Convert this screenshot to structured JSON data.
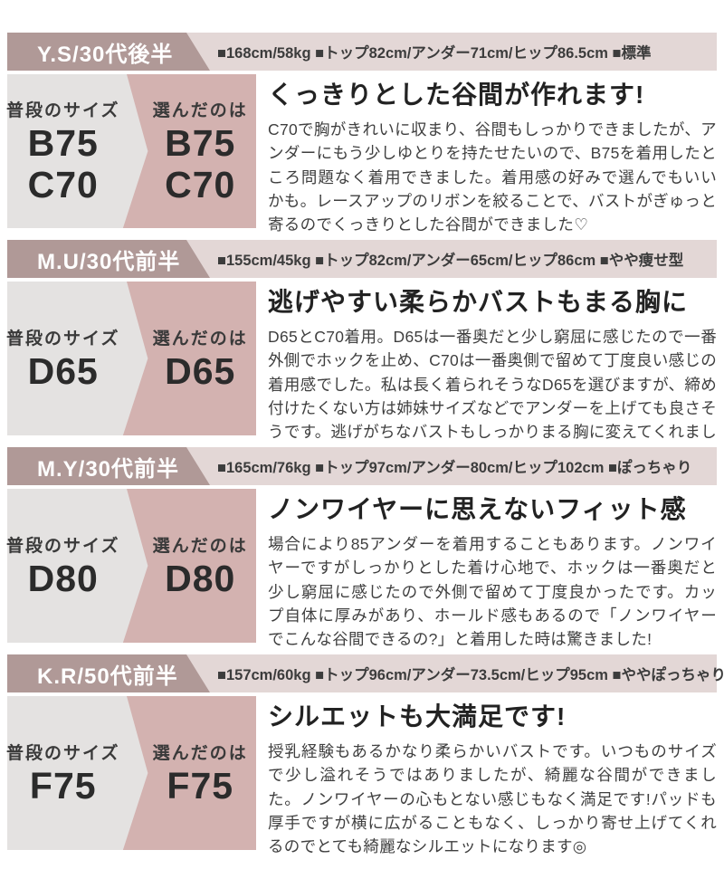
{
  "labels": {
    "usual_size": "普段のサイズ",
    "chosen_size": "選んだのは"
  },
  "colors": {
    "header_name_bg": "#b09997",
    "header_stats_bg": "#e3d7d6",
    "panel_usual_bg": "#e4e2e1",
    "panel_chosen_bg": "#d3b2b0"
  },
  "reviews": [
    {
      "name": "Y.S/30代後半",
      "stats": "■168cm/58kg ■トップ82cm/アンダー71cm/ヒップ86.5cm ■標準",
      "usual_sizes": [
        "B75",
        "C70"
      ],
      "chosen_sizes": [
        "B75",
        "C70"
      ],
      "title": "くっきりとした谷間が作れます!",
      "body": "C70で胸がきれいに収まり、谷間もしっかりできましたが、アンダーにもう少しゆとりを持たせたいので、B75を着用したところ問題なく着用できました。着用感の好みで選んでもいいかも。レースアップのリボンを絞ることで、バストがぎゅっと寄るのでくっきりとした谷間ができました♡"
    },
    {
      "name": "M.U/30代前半",
      "stats": "■155cm/45kg ■トップ82cm/アンダー65cm/ヒップ86cm ■やや痩せ型",
      "usual_sizes": [
        "D65"
      ],
      "chosen_sizes": [
        "D65"
      ],
      "title": "逃げやすい柔らかバストもまる胸に",
      "body": "D65とC70着用。D65は一番奥だと少し窮屈に感じたので一番外側でホックを止め、C70は一番奥側で留めて丁度良い感じの着用感でした。私は長く着られそうなD65を選びますが、締め付けたくない方は姉妹サイズなどでアンダーを上げても良さそうです。逃げがちなバストもしっかりまる胸に変えてくれました♡"
    },
    {
      "name": "M.Y/30代前半",
      "stats": "■165cm/76kg ■トップ97cm/アンダー80cm/ヒップ102cm ■ぽっちゃり",
      "usual_sizes": [
        "D80"
      ],
      "chosen_sizes": [
        "D80"
      ],
      "title": "ノンワイヤーに思えないフィット感",
      "body": "場合により85アンダーを着用することもあります。ノンワイヤーですがしっかりとした着け心地で、ホックは一番奥だと少し窮屈に感じたので外側で留めて丁度良かったです。カップ自体に厚みがあり、ホールド感もあるので「ノンワイヤーでこんな谷間できるの?」と着用した時は驚きました!"
    },
    {
      "name": "K.R/50代前半",
      "stats": "■157cm/60kg ■トップ96cm/アンダー73.5cm/ヒップ95cm ■ややぽっちゃり",
      "usual_sizes": [
        "F75"
      ],
      "chosen_sizes": [
        "F75"
      ],
      "title": "シルエットも大満足です!",
      "body": "授乳経験もあるかなり柔らかいバストです。いつものサイズで少し溢れそうではありましたが、綺麗な谷間ができました。ノンワイヤーの心もとない感じもなく満足です!パッドも厚手ですが横に広がることもなく、しっかり寄せ上げてくれるのでとても綺麗なシルエットになります◎"
    }
  ]
}
